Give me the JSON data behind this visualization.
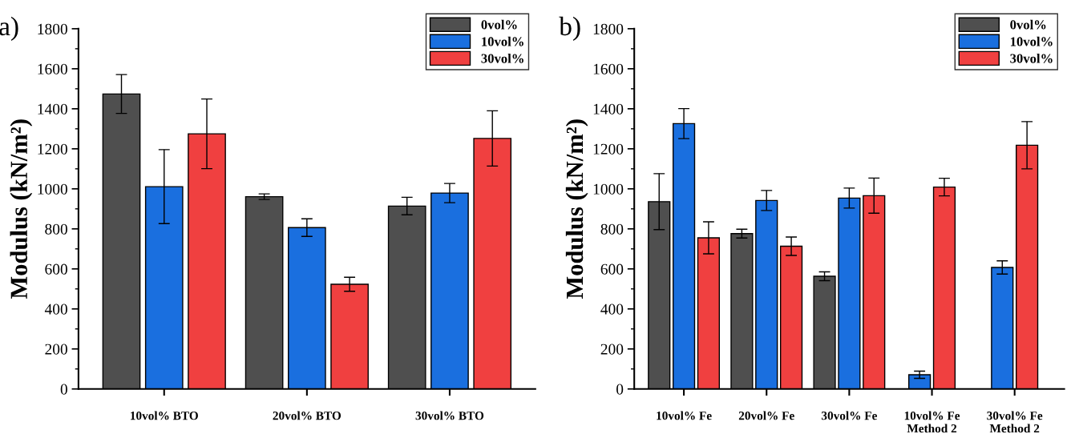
{
  "chart_data": [
    {
      "type": "bar",
      "categories": [
        "10vol% BTO",
        "20vol% BTO",
        "30vol% BTO"
      ],
      "ylabel": "Modulus (kN/m²)",
      "ylim": [
        0,
        1800
      ],
      "yticks": [
        0,
        200,
        400,
        600,
        800,
        1000,
        1200,
        1400,
        1600,
        1800
      ],
      "legend": "top right",
      "annotations": [
        "a)"
      ],
      "series": [
        {
          "name": "0vol%",
          "color": "#4f4f4f",
          "values": [
            1474,
            961,
            914
          ],
          "errors": [
            97,
            14,
            44
          ]
        },
        {
          "name": "10vol%",
          "color": "#1a6fdf",
          "values": [
            1011,
            806,
            979
          ],
          "errors": [
            185,
            44,
            48
          ]
        },
        {
          "name": "30vol%",
          "color": "#f04040",
          "values": [
            1275,
            523,
            1252
          ],
          "errors": [
            174,
            35,
            138
          ]
        }
      ]
    },
    {
      "type": "bar",
      "categories": [
        "10vol% Fe",
        "20vol% Fe",
        "30vol% Fe",
        "10vol% Fe\nMethod 2",
        "30vol% Fe\nMethod 2"
      ],
      "ylabel": "Modulus (kN/m²)",
      "ylim": [
        0,
        1800
      ],
      "yticks": [
        0,
        200,
        400,
        600,
        800,
        1000,
        1200,
        1400,
        1600,
        1800
      ],
      "legend": "top right",
      "annotations": [
        "b)"
      ],
      "series": [
        {
          "name": "0vol%",
          "color": "#4f4f4f",
          "values": [
            936,
            776,
            563,
            null,
            null
          ],
          "errors": [
            140,
            22,
            22,
            null,
            null
          ]
        },
        {
          "name": "10vol%",
          "color": "#1a6fdf",
          "values": [
            1326,
            942,
            954,
            71,
            607
          ],
          "errors": [
            75,
            50,
            50,
            18,
            33
          ]
        },
        {
          "name": "30vol%",
          "color": "#f04040",
          "values": [
            755,
            713,
            966,
            1009,
            1218
          ],
          "errors": [
            80,
            46,
            88,
            44,
            118
          ]
        }
      ]
    }
  ]
}
